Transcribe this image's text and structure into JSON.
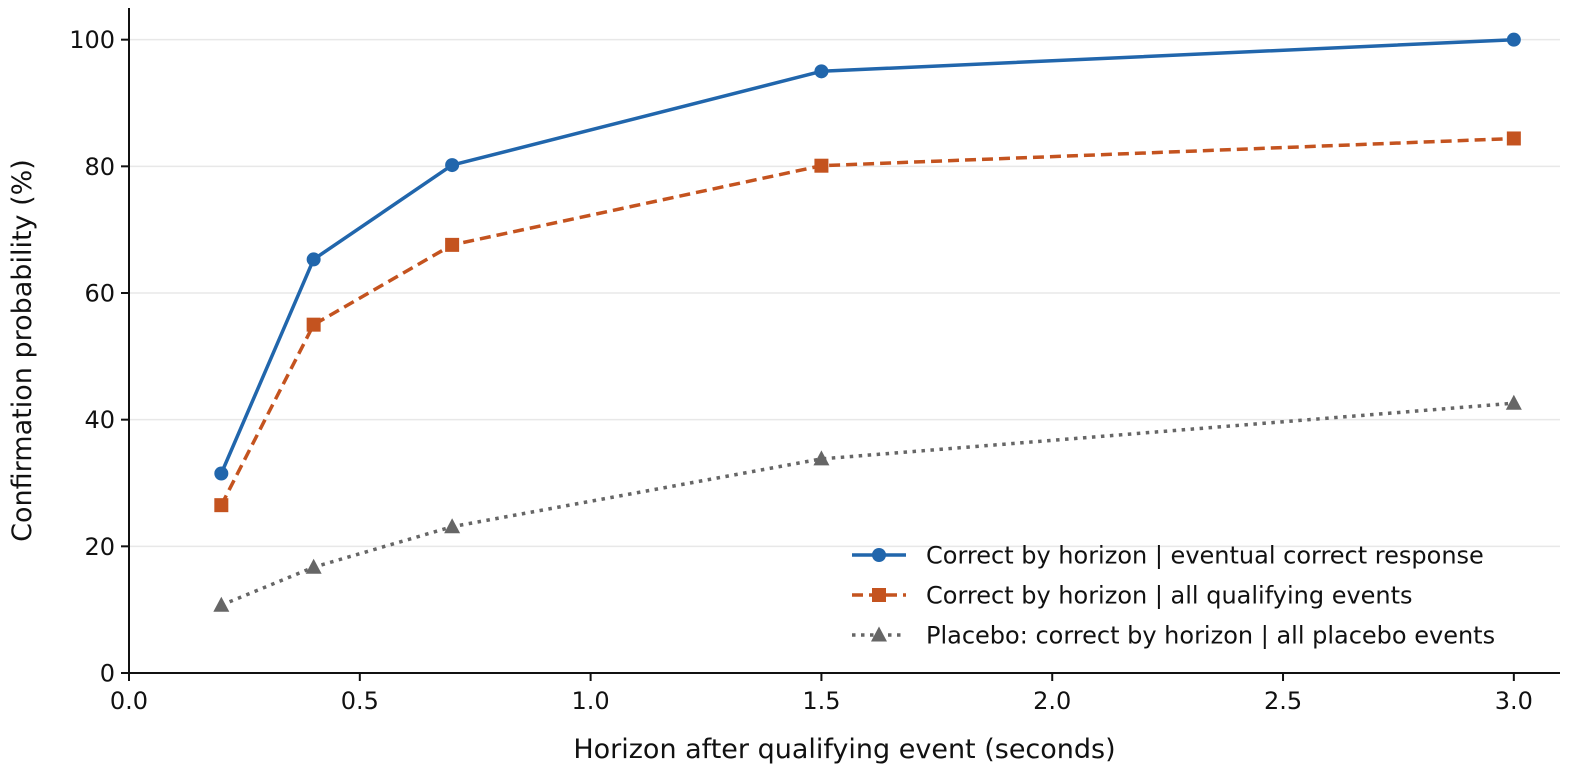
{
  "chart_data": {
    "type": "line",
    "title": "",
    "xlabel": "Horizon after qualifying event (seconds)",
    "ylabel": "Confirmation probability (%)",
    "xlim": [
      0.0,
      3.1
    ],
    "ylim": [
      0,
      105
    ],
    "xticks": [
      0.0,
      0.5,
      1.0,
      1.5,
      2.0,
      2.5,
      3.0
    ],
    "xtick_labels": [
      "0.0",
      "0.5",
      "1.0",
      "1.5",
      "2.0",
      "2.5",
      "3.0"
    ],
    "yticks": [
      0,
      20,
      40,
      60,
      80,
      100
    ],
    "ytick_labels": [
      "0",
      "20",
      "40",
      "60",
      "80",
      "100"
    ],
    "grid": "horizontal",
    "legend_position": "bottom-right",
    "x": [
      0.2,
      0.4,
      0.7,
      1.5,
      3.0
    ],
    "series": [
      {
        "name": "Correct by horizon | eventual correct response",
        "values": [
          31.5,
          65.3,
          80.2,
          95.0,
          100.0
        ],
        "color": "#2166ac",
        "line_style": "solid",
        "marker": "circle"
      },
      {
        "name": "Correct by horizon | all qualifying events",
        "values": [
          26.5,
          55.0,
          67.6,
          80.1,
          84.4
        ],
        "color": "#c4531f",
        "line_style": "dashed",
        "marker": "square"
      },
      {
        "name": "Placebo: correct by horizon | all placebo events",
        "values": [
          10.7,
          16.7,
          23.1,
          33.8,
          42.6
        ],
        "color": "#666666",
        "line_style": "dotted",
        "marker": "triangle"
      }
    ]
  }
}
